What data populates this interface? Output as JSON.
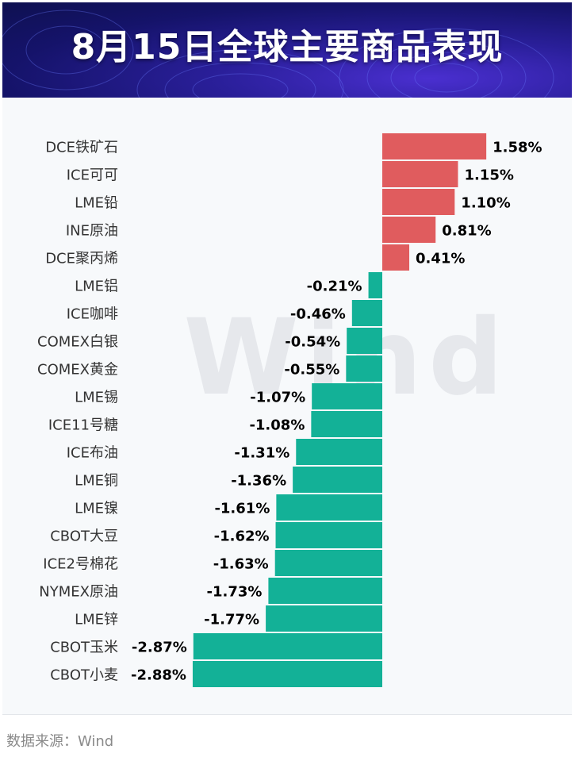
{
  "header": {
    "title": "8月15日全球主要商品表现"
  },
  "colors": {
    "positive": "#e05c5e",
    "negative": "#13b197",
    "label": "#333333",
    "value": "#000000"
  },
  "watermark": "Wind",
  "footer": {
    "source": "数据来源：Wind"
  },
  "chart_data": {
    "type": "bar",
    "orientation": "horizontal",
    "title": "8月15日全球主要商品表现",
    "unit": "%",
    "categories": [
      "DCE铁矿石",
      "ICE可可",
      "LME铅",
      "INE原油",
      "DCE聚丙烯",
      "LME铝",
      "ICE咖啡",
      "COMEX白银",
      "COMEX黄金",
      "LME锡",
      "ICE11号糖",
      "ICE布油",
      "LME铜",
      "LME镍",
      "CBOT大豆",
      "ICE2号棉花",
      "NYMEX原油",
      "LME锌",
      "CBOT玉米",
      "CBOT小麦"
    ],
    "values": [
      1.58,
      1.15,
      1.1,
      0.81,
      0.41,
      -0.21,
      -0.46,
      -0.54,
      -0.55,
      -1.07,
      -1.08,
      -1.31,
      -1.36,
      -1.61,
      -1.62,
      -1.63,
      -1.73,
      -1.77,
      -2.87,
      -2.88
    ],
    "value_labels": [
      "1.58%",
      "1.15%",
      "1.10%",
      "0.81%",
      "0.41%",
      "-0.21%",
      "-0.46%",
      "-0.54%",
      "-0.55%",
      "-1.07%",
      "-1.08%",
      "-1.31%",
      "-1.36%",
      "-1.61%",
      "-1.62%",
      "-1.63%",
      "-1.73%",
      "-1.77%",
      "-2.87%",
      "-2.88%"
    ]
  }
}
